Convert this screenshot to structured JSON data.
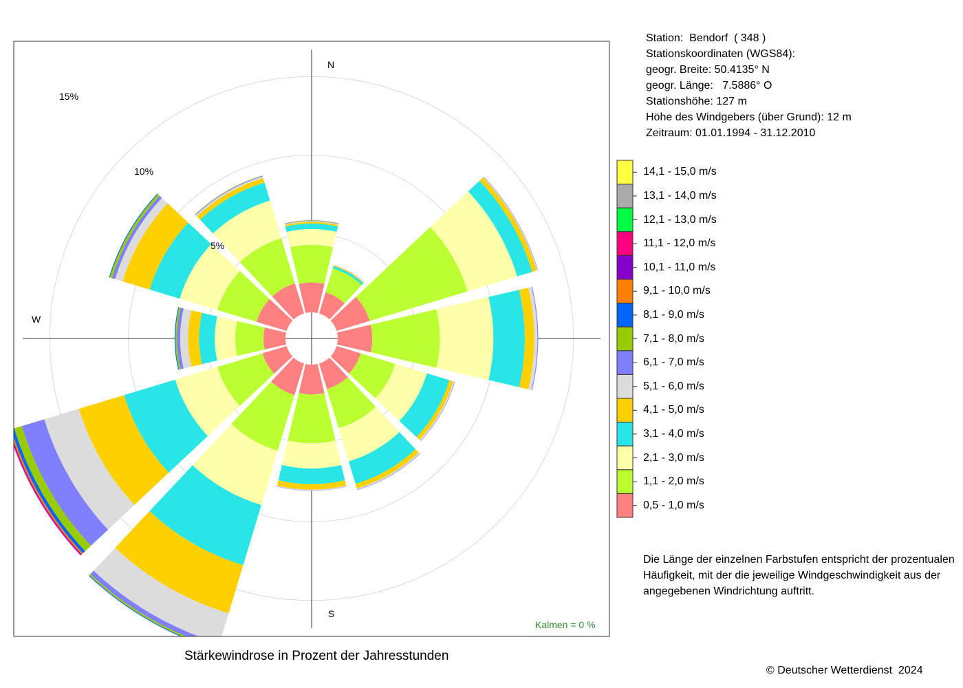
{
  "station": {
    "lines": [
      "Station:  Bendorf  ( 348 )",
      "Stationskoordinaten (WGS84):",
      "geogr. Breite: 50.4135° N",
      "geogr. Länge:   7.5886° O",
      "Stationshöhe: 127 m",
      "Höhe des Windgebers (über Grund): 12 m",
      "Zeitraum: 01.01.1994 - 31.12.2010"
    ]
  },
  "note": {
    "lines": [
      "Die Länge der einzelnen Farbstufen entspricht der prozentualen",
      "Häufigkeit, mit der die jeweilige Windgeschwindigkeit aus der",
      "angegebenen Windrichtung auftritt."
    ]
  },
  "title": "Stärkewindrose in Prozent der Jahresstunden",
  "copyright": "© Deutscher Wetterdienst  2024",
  "calm": "Kalmen  =  0 %",
  "compass": {
    "n": "N",
    "s": "S",
    "w": "W"
  },
  "ring_labels": [
    "5%",
    "10%",
    "15%"
  ],
  "legend": [
    {
      "label": "0,5 - 1,0 m/s",
      "color": "#ff8080"
    },
    {
      "label": "1,1 - 2,0 m/s",
      "color": "#bbff33"
    },
    {
      "label": "2,1 - 3,0 m/s",
      "color": "#ffffaa"
    },
    {
      "label": "3,1 - 4,0 m/s",
      "color": "#2ae5e5"
    },
    {
      "label": "4,1 - 5,0 m/s",
      "color": "#ffd000"
    },
    {
      "label": "5,1 - 6,0 m/s",
      "color": "#dcdcdc"
    },
    {
      "label": "6,1 - 7,0 m/s",
      "color": "#8080ff"
    },
    {
      "label": "7,1 - 8,0 m/s",
      "color": "#99cc00"
    },
    {
      "label": "8,1 - 9,0 m/s",
      "color": "#0066ff"
    },
    {
      "label": "9,1 - 10,0 m/s",
      "color": "#ff8000"
    },
    {
      "label": "10,1 - 11,0 m/s",
      "color": "#8800cc"
    },
    {
      "label": "11,1 - 12,0 m/s",
      "color": "#ff0080"
    },
    {
      "label": "12,1 - 13,0 m/s",
      "color": "#00ff44"
    },
    {
      "label": "13,1 - 14,0 m/s",
      "color": "#aaaaaa"
    },
    {
      "label": "14,1 - 15,0 m/s",
      "color": "#ffff44"
    }
  ],
  "chart_data": {
    "type": "windrose",
    "unit": "%",
    "r_grid": [
      5,
      10,
      15
    ],
    "calm_percent": 0,
    "series_order": [
      "0,5 - 1,0 m/s",
      "1,1 - 2,0 m/s",
      "2,1 - 3,0 m/s",
      "3,1 - 4,0 m/s",
      "4,1 - 5,0 m/s",
      "5,1 - 6,0 m/s",
      "6,1 - 7,0 m/s",
      "7,1 - 8,0 m/s",
      "8,1 - 9,0 m/s",
      "9,1 - 10,0 m/s",
      "10,1 - 11,0 m/s",
      "11,1 - 12,0 m/s",
      "12,1 - 13,0 m/s",
      "13,1 - 14,0 m/s",
      "14,1 - 15,0 m/s"
    ],
    "sectors": [
      {
        "direction_deg": 0,
        "values": [
          1.9,
          2.4,
          1.0,
          0.35,
          0.1,
          0.05,
          0.02,
          0.02,
          0.01,
          0.01,
          0,
          0,
          0,
          0,
          0
        ]
      },
      {
        "direction_deg": 30,
        "values": [
          1.4,
          1.6,
          0,
          0.15,
          0.05,
          0.02,
          0.01,
          0,
          0,
          0,
          0,
          0,
          0,
          0,
          0
        ]
      },
      {
        "direction_deg": 60,
        "values": [
          2.2,
          6.5,
          3.3,
          1.0,
          0.3,
          0.05,
          0.03,
          0,
          0,
          0,
          0,
          0,
          0,
          0,
          0
        ]
      },
      {
        "direction_deg": 90,
        "values": [
          2.2,
          4.3,
          3.4,
          2.0,
          0.6,
          0.2,
          0.05,
          0,
          0,
          0,
          0,
          0,
          0,
          0,
          0
        ]
      },
      {
        "direction_deg": 120,
        "values": [
          1.6,
          2.3,
          2.1,
          1.5,
          0.25,
          0.08,
          0.03,
          0,
          0,
          0,
          0,
          0,
          0,
          0,
          0
        ]
      },
      {
        "direction_deg": 150,
        "values": [
          1.7,
          2.6,
          2.2,
          1.5,
          0.3,
          0.08,
          0.03,
          0,
          0,
          0,
          0,
          0,
          0,
          0,
          0
        ]
      },
      {
        "direction_deg": 180,
        "values": [
          1.9,
          3.1,
          1.6,
          1.0,
          0.35,
          0.05,
          0.02,
          0,
          0,
          0,
          0,
          0,
          0,
          0,
          0
        ]
      },
      {
        "direction_deg": 210,
        "values": [
          2.1,
          3.7,
          3.6,
          4.0,
          3.2,
          2.0,
          0.3,
          0.1,
          0.05,
          0,
          0,
          0,
          0,
          0,
          0
        ]
      },
      {
        "direction_deg": 240,
        "values": [
          1.6,
          3.0,
          2.8,
          3.4,
          3.0,
          2.3,
          1.5,
          0.5,
          0.2,
          0.1,
          0.05,
          0.05,
          0,
          0,
          0
        ]
      },
      {
        "direction_deg": 270,
        "values": [
          1.4,
          1.8,
          1.3,
          1.0,
          0.7,
          0.5,
          0.2,
          0.1,
          0.05,
          0,
          0,
          0,
          0,
          0,
          0
        ]
      },
      {
        "direction_deg": 300,
        "values": [
          2.0,
          2.6,
          2.5,
          2.0,
          1.8,
          0.5,
          0.2,
          0.15,
          0.05,
          0,
          0,
          0,
          0,
          0,
          0
        ]
      },
      {
        "direction_deg": 330,
        "values": [
          2.0,
          3.0,
          2.5,
          1.2,
          0.3,
          0.1,
          0.05,
          0.02,
          0,
          0,
          0,
          0,
          0,
          0,
          0
        ]
      }
    ]
  }
}
